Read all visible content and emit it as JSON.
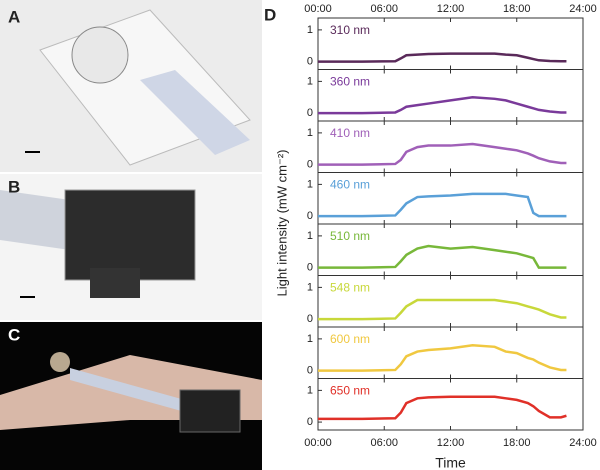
{
  "figure": {
    "panel_labels": [
      "A",
      "B",
      "C",
      "D"
    ],
    "ylabel": "Light intensity (mW cm⁻²)"
  },
  "chart_data": [
    {
      "type": "line",
      "x": [
        0,
        4,
        7,
        7.5,
        8,
        9,
        10,
        12,
        14,
        16,
        17,
        18,
        19,
        19.5,
        20,
        21,
        22,
        22.5
      ],
      "xlim": [
        0,
        24
      ],
      "xticks": [
        {
          "value": 0,
          "label": "00:00"
        },
        {
          "value": 6,
          "label": "06:00"
        },
        {
          "value": 12,
          "label": "12:00"
        },
        {
          "value": 18,
          "label": "18:00"
        },
        {
          "value": 24,
          "label": "24:00"
        }
      ],
      "ylim": [
        -0.25,
        1.375
      ],
      "yticks": [
        0,
        1
      ],
      "series": [
        {
          "name": "310 nm",
          "color": "#5a2a5a",
          "values": [
            0,
            0,
            0.01,
            0.1,
            0.2,
            0.22,
            0.24,
            0.25,
            0.25,
            0.25,
            0.22,
            0.2,
            0.12,
            0.08,
            0.04,
            0.02,
            0.01,
            0.01
          ]
        }
      ]
    },
    {
      "type": "line",
      "x": [
        0,
        4,
        7,
        7.5,
        8,
        9,
        10,
        12,
        14,
        16,
        17,
        18,
        19,
        19.5,
        20,
        21,
        22,
        22.5
      ],
      "xlim": [
        0,
        24
      ],
      "xticks": [
        {
          "value": 0,
          "label": "00:00"
        },
        {
          "value": 6,
          "label": "06:00"
        },
        {
          "value": 12,
          "label": "12:00"
        },
        {
          "value": 18,
          "label": "18:00"
        },
        {
          "value": 24,
          "label": "24:00"
        }
      ],
      "ylim": [
        -0.25,
        1.375
      ],
      "yticks": [
        0,
        1
      ],
      "series": [
        {
          "name": "360 nm",
          "color": "#7a3a9a",
          "values": [
            0,
            0,
            0.02,
            0.1,
            0.2,
            0.25,
            0.3,
            0.4,
            0.5,
            0.45,
            0.4,
            0.3,
            0.2,
            0.15,
            0.1,
            0.05,
            0.02,
            0.02
          ]
        }
      ]
    },
    {
      "type": "line",
      "x": [
        0,
        4,
        7,
        7.5,
        8,
        9,
        10,
        12,
        14,
        16,
        17,
        18,
        19,
        19.5,
        20,
        21,
        22,
        22.5
      ],
      "xlim": [
        0,
        24
      ],
      "xticks": [
        {
          "value": 0,
          "label": "00:00"
        },
        {
          "value": 6,
          "label": "06:00"
        },
        {
          "value": 12,
          "label": "12:00"
        },
        {
          "value": 18,
          "label": "18:00"
        },
        {
          "value": 24,
          "label": "24:00"
        }
      ],
      "ylim": [
        -0.25,
        1.375
      ],
      "yticks": [
        0,
        1
      ],
      "series": [
        {
          "name": "410 nm",
          "color": "#a060b8",
          "values": [
            0,
            0,
            0.02,
            0.15,
            0.4,
            0.55,
            0.6,
            0.6,
            0.65,
            0.55,
            0.5,
            0.45,
            0.35,
            0.28,
            0.2,
            0.1,
            0.05,
            0.05
          ]
        }
      ]
    },
    {
      "type": "line",
      "x": [
        0,
        4,
        7,
        7.5,
        8,
        9,
        10,
        12,
        14,
        16,
        17,
        18,
        19,
        19.5,
        20,
        21,
        22,
        22.5
      ],
      "xlim": [
        0,
        24
      ],
      "xticks": [
        {
          "value": 0,
          "label": "00:00"
        },
        {
          "value": 6,
          "label": "06:00"
        },
        {
          "value": 12,
          "label": "12:00"
        },
        {
          "value": 18,
          "label": "18:00"
        },
        {
          "value": 24,
          "label": "24:00"
        }
      ],
      "ylim": [
        -0.25,
        1.375
      ],
      "yticks": [
        0,
        1
      ],
      "series": [
        {
          "name": "460 nm",
          "color": "#5aa0d8",
          "values": [
            0,
            0,
            0.02,
            0.2,
            0.4,
            0.6,
            0.62,
            0.65,
            0.7,
            0.7,
            0.7,
            0.65,
            0.6,
            0.1,
            0,
            0,
            0,
            0
          ]
        }
      ]
    },
    {
      "type": "line",
      "x": [
        0,
        4,
        7,
        7.5,
        8,
        9,
        10,
        12,
        14,
        16,
        17,
        18,
        19,
        19.5,
        20,
        21,
        22,
        22.5
      ],
      "xlim": [
        0,
        24
      ],
      "xticks": [
        {
          "value": 0,
          "label": "00:00"
        },
        {
          "value": 6,
          "label": "06:00"
        },
        {
          "value": 12,
          "label": "12:00"
        },
        {
          "value": 18,
          "label": "18:00"
        },
        {
          "value": 24,
          "label": "24:00"
        }
      ],
      "ylim": [
        -0.25,
        1.375
      ],
      "yticks": [
        0,
        1
      ],
      "series": [
        {
          "name": "510 nm",
          "color": "#78b83a",
          "values": [
            0,
            0,
            0.02,
            0.2,
            0.4,
            0.6,
            0.68,
            0.6,
            0.65,
            0.55,
            0.5,
            0.45,
            0.35,
            0.3,
            0,
            0,
            0,
            0
          ]
        }
      ]
    },
    {
      "type": "line",
      "x": [
        0,
        4,
        7,
        7.5,
        8,
        9,
        10,
        12,
        14,
        16,
        17,
        18,
        19,
        19.5,
        20,
        21,
        22,
        22.5
      ],
      "xlim": [
        0,
        24
      ],
      "xticks": [
        {
          "value": 0,
          "label": "00:00"
        },
        {
          "value": 6,
          "label": "06:00"
        },
        {
          "value": 12,
          "label": "12:00"
        },
        {
          "value": 18,
          "label": "18:00"
        },
        {
          "value": 24,
          "label": "24:00"
        }
      ],
      "ylim": [
        -0.25,
        1.375
      ],
      "yticks": [
        0,
        1
      ],
      "series": [
        {
          "name": "548 nm",
          "color": "#c8d83a",
          "values": [
            0,
            0,
            0.02,
            0.2,
            0.4,
            0.6,
            0.6,
            0.6,
            0.6,
            0.6,
            0.55,
            0.5,
            0.4,
            0.35,
            0.3,
            0.15,
            0.05,
            0.05
          ]
        }
      ]
    },
    {
      "type": "line",
      "x": [
        0,
        4,
        7,
        7.5,
        8,
        9,
        10,
        12,
        14,
        16,
        17,
        18,
        19,
        19.5,
        20,
        21,
        22,
        22.5
      ],
      "xlim": [
        0,
        24
      ],
      "xticks": [
        {
          "value": 0,
          "label": "00:00"
        },
        {
          "value": 6,
          "label": "06:00"
        },
        {
          "value": 12,
          "label": "12:00"
        },
        {
          "value": 18,
          "label": "18:00"
        },
        {
          "value": 24,
          "label": "24:00"
        }
      ],
      "ylim": [
        -0.25,
        1.375
      ],
      "yticks": [
        0,
        1
      ],
      "series": [
        {
          "name": "600 nm",
          "color": "#f0c840",
          "values": [
            0,
            0,
            0.02,
            0.2,
            0.45,
            0.6,
            0.65,
            0.7,
            0.8,
            0.75,
            0.6,
            0.55,
            0.4,
            0.35,
            0.25,
            0.1,
            0.02,
            0.02
          ]
        }
      ]
    },
    {
      "type": "line",
      "x": [
        0,
        4,
        7,
        7.5,
        8,
        9,
        10,
        12,
        14,
        16,
        17,
        18,
        19,
        19.5,
        20,
        21,
        22,
        22.5
      ],
      "xlim": [
        0,
        24
      ],
      "xticks": [
        {
          "value": 0,
          "label": "00:00"
        },
        {
          "value": 6,
          "label": "06:00"
        },
        {
          "value": 12,
          "label": "12:00"
        },
        {
          "value": 18,
          "label": "18:00"
        },
        {
          "value": 24,
          "label": "24:00"
        }
      ],
      "ylim": [
        -0.25,
        1.375
      ],
      "yticks": [
        0,
        1
      ],
      "xlabel": "Time",
      "series": [
        {
          "name": "650 nm",
          "color": "#e03028",
          "values": [
            0.1,
            0.1,
            0.12,
            0.3,
            0.6,
            0.75,
            0.78,
            0.8,
            0.8,
            0.8,
            0.75,
            0.7,
            0.6,
            0.5,
            0.35,
            0.15,
            0.15,
            0.2
          ]
        }
      ]
    }
  ]
}
